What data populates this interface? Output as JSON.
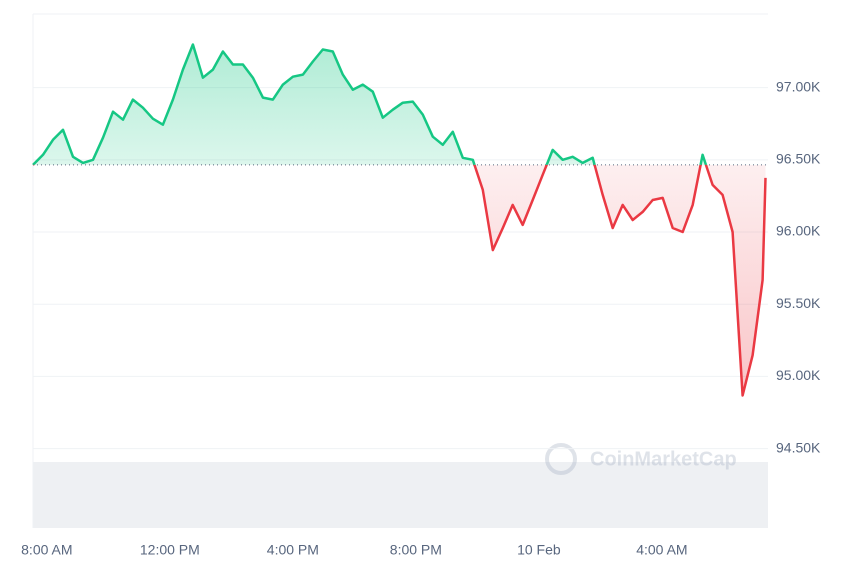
{
  "chart_data": {
    "type": "line",
    "watermark": "CoinMarketCap",
    "x": [
      7.55,
      7.875,
      8.2,
      8.525,
      8.85,
      9.175,
      9.5,
      9.825,
      10.15,
      10.475,
      10.8,
      11.125,
      11.45,
      11.775,
      12.1,
      12.425,
      12.75,
      13.075,
      13.4,
      13.725,
      14.05,
      14.375,
      14.7,
      15.025,
      15.35,
      15.675,
      16.0,
      16.325,
      16.65,
      16.975,
      17.3,
      17.625,
      17.95,
      18.275,
      18.6,
      18.925,
      19.25,
      19.575,
      19.9,
      20.225,
      20.55,
      20.875,
      21.2,
      21.525,
      21.85,
      22.175,
      22.5,
      22.825,
      23.15,
      23.475,
      23.8,
      24.125,
      24.45,
      24.775,
      25.1,
      25.425,
      25.75,
      26.075,
      26.4,
      26.725,
      27.05,
      27.375,
      27.7,
      28.025,
      28.35,
      28.675,
      29.0,
      29.325,
      29.65,
      29.975,
      30.3,
      30.625,
      30.95,
      31.275,
      31.37
    ],
    "values": [
      96465,
      96535,
      96639,
      96708,
      96521,
      96479,
      96500,
      96653,
      96833,
      96778,
      96917,
      96861,
      96785,
      96743,
      96917,
      97125,
      97299,
      97069,
      97125,
      97250,
      97160,
      97160,
      97069,
      96931,
      96917,
      97021,
      97076,
      97090,
      97181,
      97264,
      97250,
      97090,
      96986,
      97021,
      96972,
      96792,
      96847,
      96896,
      96903,
      96813,
      96660,
      96604,
      96694,
      96514,
      96500,
      96292,
      95875,
      96028,
      96188,
      96049,
      96222,
      96396,
      96569,
      96500,
      96521,
      96479,
      96514,
      96257,
      96028,
      96188,
      96083,
      96139,
      96222,
      96236,
      96028,
      96000,
      96188,
      96535,
      96326,
      96257,
      96000,
      94868,
      95146,
      95667,
      96375
    ],
    "baseline": 96465,
    "up_color": "#16c784",
    "down_color": "#ea3943",
    "xlim": [
      7.55,
      31.45
    ],
    "ylim": [
      93950,
      97510
    ],
    "xticks": [
      {
        "value": 8,
        "label": "8:00 AM"
      },
      {
        "value": 12,
        "label": "12:00 PM"
      },
      {
        "value": 16,
        "label": "4:00 PM"
      },
      {
        "value": 20,
        "label": "8:00 PM"
      },
      {
        "value": 24,
        "label": "10 Feb"
      },
      {
        "value": 28,
        "label": "4:00 AM"
      }
    ],
    "yticks": [
      {
        "value": 94500,
        "label": "94.50K"
      },
      {
        "value": 95000,
        "label": "95.00K"
      },
      {
        "value": 95500,
        "label": "95.50K"
      },
      {
        "value": 96000,
        "label": "96.00K"
      },
      {
        "value": 96500,
        "label": "96.50K"
      },
      {
        "value": 97000,
        "label": "97.00K"
      }
    ],
    "grid": true
  }
}
